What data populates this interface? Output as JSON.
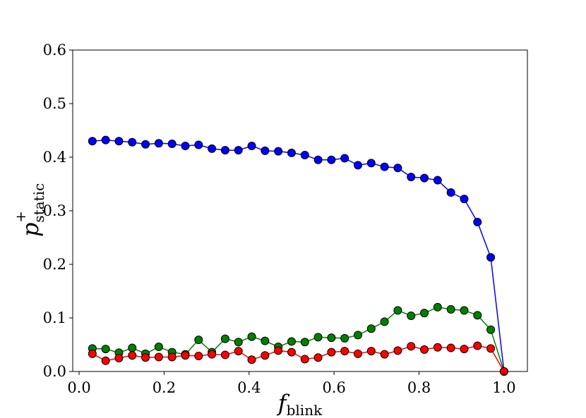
{
  "chart_data": {
    "type": "line",
    "xlabel": "f",
    "xlabel_subscript": "blink",
    "ylabel": "p",
    "ylabel_superscript": "+",
    "ylabel_subscript": "static",
    "xlim": [
      -0.015,
      1.055
    ],
    "ylim": [
      0.0,
      0.6
    ],
    "x_ticks": [
      0.0,
      0.2,
      0.4,
      0.6,
      0.8,
      1.0
    ],
    "x_tick_labels": [
      "0.0",
      "0.2",
      "0.4",
      "0.6",
      "0.8",
      "1.0"
    ],
    "y_ticks": [
      0.0,
      0.1,
      0.2,
      0.3,
      0.4,
      0.5,
      0.6
    ],
    "y_tick_labels": [
      "0.0",
      "0.1",
      "0.2",
      "0.3",
      "0.4",
      "0.5",
      "0.6"
    ],
    "grid": false,
    "x": [
      0.03125,
      0.0625,
      0.09375,
      0.125,
      0.15625,
      0.1875,
      0.21875,
      0.25,
      0.28125,
      0.3125,
      0.34375,
      0.375,
      0.40625,
      0.4375,
      0.46875,
      0.5,
      0.53125,
      0.5625,
      0.59375,
      0.625,
      0.65625,
      0.6875,
      0.71875,
      0.75,
      0.78125,
      0.8125,
      0.84375,
      0.875,
      0.90625,
      0.9375,
      0.96875,
      1.0
    ],
    "series": [
      {
        "color": "#0000ff",
        "values": [
          0.43,
          0.432,
          0.43,
          0.428,
          0.424,
          0.426,
          0.425,
          0.421,
          0.423,
          0.416,
          0.413,
          0.413,
          0.421,
          0.412,
          0.411,
          0.408,
          0.404,
          0.395,
          0.395,
          0.398,
          0.385,
          0.389,
          0.382,
          0.38,
          0.363,
          0.361,
          0.357,
          0.334,
          0.322,
          0.279,
          0.213,
          0.0
        ]
      },
      {
        "color": "#008000",
        "values": [
          0.043,
          0.042,
          0.035,
          0.044,
          0.033,
          0.046,
          0.036,
          0.032,
          0.059,
          0.036,
          0.061,
          0.055,
          0.065,
          0.057,
          0.046,
          0.056,
          0.055,
          0.064,
          0.063,
          0.062,
          0.068,
          0.08,
          0.093,
          0.114,
          0.104,
          0.109,
          0.12,
          0.116,
          0.114,
          0.105,
          0.078,
          0.0
        ]
      },
      {
        "color": "#ff0000",
        "values": [
          0.033,
          0.02,
          0.025,
          0.03,
          0.026,
          0.027,
          0.027,
          0.03,
          0.029,
          0.032,
          0.031,
          0.038,
          0.022,
          0.03,
          0.039,
          0.036,
          0.023,
          0.026,
          0.036,
          0.038,
          0.033,
          0.038,
          0.032,
          0.039,
          0.047,
          0.041,
          0.045,
          0.044,
          0.042,
          0.048,
          0.043,
          0.0
        ]
      }
    ]
  }
}
